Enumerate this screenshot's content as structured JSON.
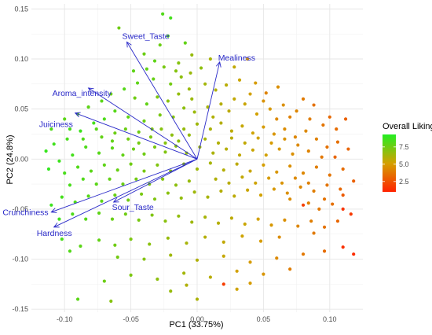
{
  "chart_data": {
    "type": "scatter",
    "subtype": "pca-biplot",
    "xlabel": "PC1 (33.75%)",
    "ylabel": "PC2 (24.8%)",
    "xlim": [
      -0.125,
      0.125
    ],
    "ylim": [
      -0.153,
      0.155
    ],
    "x_ticks": [
      -0.1,
      -0.05,
      0.0,
      0.05,
      0.1
    ],
    "x_tick_labels": [
      "-0.10",
      "-0.05",
      "0.00",
      "0.05",
      "0.10"
    ],
    "y_ticks": [
      -0.15,
      -0.1,
      -0.05,
      0.0,
      0.05,
      0.1,
      0.15
    ],
    "y_tick_labels": [
      "-0.15",
      "-0.10",
      "-0.05",
      "0.00",
      "0.05",
      "0.10",
      "0.15"
    ],
    "grid": true,
    "colors": {
      "loadings": "#2828c8",
      "low": "#ff2200",
      "mid": "#d4a000",
      "high": "#22ee22"
    },
    "color_scale": {
      "min": 1,
      "max": 9.3
    },
    "legend": {
      "title": "Overall Liking",
      "position": "right",
      "ticks": [
        7.5,
        5.0,
        2.5
      ],
      "tick_labels": [
        "7.5",
        "5.0",
        "2.5"
      ]
    },
    "loadings": [
      {
        "name": "Sweet_Taste",
        "x": -0.053,
        "y": 0.117
      },
      {
        "name": "Mealiness",
        "x": 0.017,
        "y": 0.097
      },
      {
        "name": "Aroma_intensity",
        "x": -0.082,
        "y": 0.071
      },
      {
        "name": "Juiciness",
        "x": -0.092,
        "y": 0.046
      },
      {
        "name": "Sour_Taste",
        "x": -0.063,
        "y": -0.043
      },
      {
        "name": "Crunchiness",
        "x": -0.11,
        "y": -0.053
      },
      {
        "name": "Hardness",
        "x": -0.108,
        "y": -0.068
      }
    ],
    "points": [
      [
        -0.059,
        0.131,
        7.5
      ],
      [
        -0.026,
        0.145,
        8.2
      ],
      [
        -0.02,
        0.141,
        8.5
      ],
      [
        -0.022,
        0.123,
        8.0
      ],
      [
        -0.009,
        0.116,
        7.8
      ],
      [
        -0.04,
        0.105,
        7.6
      ],
      [
        -0.032,
        0.098,
        7.9
      ],
      [
        -0.025,
        0.092,
        7.3
      ],
      [
        -0.014,
        0.096,
        7.0
      ],
      [
        -0.012,
        0.082,
        6.8
      ],
      [
        -0.005,
        0.086,
        6.5
      ],
      [
        0.003,
        0.091,
        6.8
      ],
      [
        -0.02,
        0.075,
        7.4
      ],
      [
        -0.033,
        0.08,
        7.7
      ],
      [
        -0.045,
        0.076,
        7.9
      ],
      [
        -0.055,
        0.07,
        8.1
      ],
      [
        -0.047,
        0.061,
        7.5
      ],
      [
        -0.038,
        0.055,
        7.8
      ],
      [
        -0.03,
        0.062,
        7.2
      ],
      [
        -0.022,
        0.058,
        6.9
      ],
      [
        -0.014,
        0.065,
        6.7
      ],
      [
        -0.006,
        0.07,
        6.5
      ],
      [
        0.006,
        0.075,
        6.3
      ],
      [
        0.014,
        0.069,
        6.0
      ],
      [
        0.022,
        0.074,
        5.8
      ],
      [
        0.032,
        0.079,
        5.4
      ],
      [
        0.044,
        0.076,
        5.0
      ],
      [
        0.052,
        0.066,
        4.2
      ],
      [
        0.061,
        0.072,
        4.6
      ],
      [
        0.04,
        0.065,
        5.2
      ],
      [
        0.028,
        0.06,
        5.6
      ],
      [
        0.018,
        0.055,
        5.9
      ],
      [
        0.008,
        0.052,
        6.2
      ],
      [
        -0.002,
        0.047,
        6.5
      ],
      [
        -0.01,
        0.051,
        6.8
      ],
      [
        -0.018,
        0.042,
        7.0
      ],
      [
        -0.028,
        0.044,
        7.3
      ],
      [
        -0.04,
        0.038,
        7.6
      ],
      [
        -0.052,
        0.042,
        7.9
      ],
      [
        -0.062,
        0.048,
        8.1
      ],
      [
        -0.07,
        0.04,
        8.3
      ],
      [
        -0.078,
        0.036,
        8.5
      ],
      [
        -0.088,
        0.028,
        8.7
      ],
      [
        -0.098,
        0.02,
        8.4
      ],
      [
        -0.108,
        0.015,
        8.6
      ],
      [
        -0.114,
        0.008,
        8.8
      ],
      [
        -0.11,
        0.03,
        8.2
      ],
      [
        -0.1,
        0.04,
        8.0
      ],
      [
        -0.09,
        0.045,
        7.8
      ],
      [
        -0.082,
        0.052,
        7.9
      ],
      [
        -0.072,
        0.058,
        8.0
      ],
      [
        -0.065,
        0.065,
        7.7
      ],
      [
        -0.072,
        0.022,
        7.8
      ],
      [
        -0.062,
        0.026,
        7.6
      ],
      [
        -0.052,
        0.02,
        7.4
      ],
      [
        -0.044,
        0.027,
        7.5
      ],
      [
        -0.035,
        0.022,
        7.2
      ],
      [
        -0.027,
        0.03,
        7.0
      ],
      [
        -0.019,
        0.024,
        6.8
      ],
      [
        -0.01,
        0.03,
        6.6
      ],
      [
        0.0,
        0.035,
        6.4
      ],
      [
        0.01,
        0.03,
        6.1
      ],
      [
        0.018,
        0.036,
        5.9
      ],
      [
        0.026,
        0.028,
        5.7
      ],
      [
        0.034,
        0.033,
        5.5
      ],
      [
        0.042,
        0.026,
        5.3
      ],
      [
        0.05,
        0.032,
        5.0
      ],
      [
        0.058,
        0.025,
        4.8
      ],
      [
        0.066,
        0.03,
        4.5
      ],
      [
        0.074,
        0.022,
        4.3
      ],
      [
        0.082,
        0.028,
        4.4
      ],
      [
        0.09,
        0.02,
        4.1
      ],
      [
        0.098,
        0.012,
        3.6
      ],
      [
        0.106,
        0.017,
        3.5
      ],
      [
        0.114,
        0.01,
        3.2
      ],
      [
        0.094,
        0.002,
        3.8
      ],
      [
        0.084,
        0.008,
        4.2
      ],
      [
        0.072,
        0.005,
        4.6
      ],
      [
        0.062,
        0.01,
        4.9
      ],
      [
        0.052,
        0.004,
        5.2
      ],
      [
        0.042,
        0.009,
        5.4
      ],
      [
        0.032,
        0.004,
        5.6
      ],
      [
        0.022,
        0.01,
        5.9
      ],
      [
        0.012,
        0.006,
        6.1
      ],
      [
        0.002,
        0.012,
        6.4
      ],
      [
        -0.008,
        0.006,
        6.7
      ],
      [
        -0.016,
        0.013,
        6.9
      ],
      [
        -0.024,
        0.007,
        7.1
      ],
      [
        -0.032,
        0.012,
        7.3
      ],
      [
        -0.04,
        0.005,
        7.5
      ],
      [
        -0.048,
        0.01,
        7.6
      ],
      [
        -0.056,
        0.004,
        7.8
      ],
      [
        -0.064,
        0.011,
        8.0
      ],
      [
        -0.074,
        0.006,
        8.1
      ],
      [
        -0.084,
        0.012,
        8.3
      ],
      [
        -0.094,
        0.004,
        8.5
      ],
      [
        -0.104,
        -0.002,
        8.7
      ],
      [
        -0.112,
        -0.01,
        8.9
      ],
      [
        -0.1,
        -0.014,
        8.4
      ],
      [
        -0.09,
        -0.008,
        8.2
      ],
      [
        -0.08,
        -0.012,
        8.0
      ],
      [
        -0.07,
        -0.006,
        7.9
      ],
      [
        -0.06,
        -0.011,
        7.7
      ],
      [
        -0.05,
        -0.005,
        7.5
      ],
      [
        -0.04,
        -0.012,
        7.3
      ],
      [
        -0.03,
        -0.006,
        7.1
      ],
      [
        -0.02,
        -0.012,
        6.9
      ],
      [
        -0.01,
        -0.005,
        6.7
      ],
      [
        0.0,
        -0.01,
        6.4
      ],
      [
        0.01,
        -0.004,
        6.2
      ],
      [
        0.02,
        -0.011,
        5.9
      ],
      [
        0.03,
        -0.005,
        5.7
      ],
      [
        0.04,
        -0.012,
        5.4
      ],
      [
        0.05,
        -0.006,
        5.1
      ],
      [
        0.06,
        -0.013,
        4.8
      ],
      [
        0.07,
        -0.007,
        4.6
      ],
      [
        0.08,
        -0.014,
        4.3
      ],
      [
        0.09,
        -0.008,
        4.0
      ],
      [
        0.1,
        -0.016,
        3.7
      ],
      [
        0.11,
        -0.01,
        3.4
      ],
      [
        0.118,
        -0.022,
        3.0
      ],
      [
        0.108,
        -0.03,
        3.3
      ],
      [
        0.098,
        -0.026,
        3.7
      ],
      [
        0.088,
        -0.032,
        4.0
      ],
      [
        0.078,
        -0.028,
        4.3
      ],
      [
        0.068,
        -0.034,
        4.6
      ],
      [
        0.058,
        -0.03,
        4.9
      ],
      [
        0.048,
        -0.036,
        5.2
      ],
      [
        0.038,
        -0.031,
        5.4
      ],
      [
        0.028,
        -0.037,
        5.7
      ],
      [
        0.018,
        -0.032,
        5.9
      ],
      [
        0.008,
        -0.038,
        6.2
      ],
      [
        -0.002,
        -0.033,
        6.4
      ],
      [
        -0.012,
        -0.039,
        6.7
      ],
      [
        -0.022,
        -0.034,
        6.9
      ],
      [
        -0.032,
        -0.04,
        7.1
      ],
      [
        -0.042,
        -0.035,
        7.3
      ],
      [
        -0.052,
        -0.041,
        7.5
      ],
      [
        -0.062,
        -0.036,
        7.7
      ],
      [
        -0.072,
        -0.042,
        7.9
      ],
      [
        -0.082,
        -0.037,
        8.1
      ],
      [
        -0.092,
        -0.043,
        8.3
      ],
      [
        -0.102,
        -0.038,
        8.5
      ],
      [
        -0.11,
        -0.046,
        8.7
      ],
      [
        -0.104,
        -0.06,
        8.6
      ],
      [
        -0.094,
        -0.055,
        8.3
      ],
      [
        -0.084,
        -0.06,
        8.1
      ],
      [
        -0.074,
        -0.054,
        7.9
      ],
      [
        -0.064,
        -0.06,
        7.7
      ],
      [
        -0.054,
        -0.055,
        7.5
      ],
      [
        -0.044,
        -0.061,
        7.3
      ],
      [
        -0.034,
        -0.056,
        7.1
      ],
      [
        -0.024,
        -0.062,
        6.9
      ],
      [
        -0.014,
        -0.057,
        6.7
      ],
      [
        -0.004,
        -0.063,
        6.4
      ],
      [
        0.006,
        -0.058,
        6.2
      ],
      [
        0.016,
        -0.064,
        5.9
      ],
      [
        0.026,
        -0.059,
        5.7
      ],
      [
        0.036,
        -0.065,
        5.4
      ],
      [
        0.046,
        -0.06,
        5.2
      ],
      [
        0.056,
        -0.066,
        4.9
      ],
      [
        0.066,
        -0.061,
        4.6
      ],
      [
        0.076,
        -0.067,
        4.3
      ],
      [
        0.086,
        -0.062,
        4.0
      ],
      [
        0.096,
        -0.068,
        3.6
      ],
      [
        0.106,
        -0.062,
        3.2
      ],
      [
        0.116,
        -0.055,
        1.8
      ],
      [
        0.11,
        -0.05,
        1.6
      ],
      [
        0.08,
        -0.046,
        2.0
      ],
      [
        0.062,
        -0.078,
        4.5
      ],
      [
        0.048,
        -0.082,
        5.0
      ],
      [
        0.034,
        -0.077,
        5.3
      ],
      [
        0.02,
        -0.083,
        5.6
      ],
      [
        0.006,
        -0.078,
        5.9
      ],
      [
        -0.008,
        -0.084,
        6.2
      ],
      [
        -0.022,
        -0.079,
        6.6
      ],
      [
        -0.036,
        -0.085,
        6.9
      ],
      [
        -0.05,
        -0.08,
        7.2
      ],
      [
        -0.062,
        -0.086,
        7.5
      ],
      [
        -0.074,
        -0.081,
        7.8
      ],
      [
        -0.088,
        -0.087,
        8.0
      ],
      [
        -0.102,
        -0.08,
        8.4
      ],
      [
        -0.096,
        -0.092,
        8.2
      ],
      [
        -0.06,
        -0.098,
        7.4
      ],
      [
        -0.04,
        -0.1,
        7.0
      ],
      [
        -0.02,
        -0.096,
        6.4
      ],
      [
        0.0,
        -0.101,
        6.0
      ],
      [
        0.02,
        -0.097,
        5.5
      ],
      [
        0.04,
        -0.103,
        5.0
      ],
      [
        0.06,
        -0.099,
        4.4
      ],
      [
        0.08,
        -0.095,
        3.8
      ],
      [
        0.096,
        -0.092,
        3.4
      ],
      [
        0.11,
        -0.088,
        1.5
      ],
      [
        0.118,
        -0.095,
        1.3
      ],
      [
        0.07,
        -0.11,
        4.0
      ],
      [
        0.05,
        -0.115,
        4.8
      ],
      [
        0.03,
        -0.112,
        5.2
      ],
      [
        0.01,
        -0.118,
        5.8
      ],
      [
        -0.01,
        -0.114,
        6.3
      ],
      [
        -0.03,
        -0.12,
        6.8
      ],
      [
        -0.05,
        -0.116,
        7.2
      ],
      [
        -0.07,
        -0.122,
        7.6
      ],
      [
        0.02,
        -0.125,
        1.9
      ],
      [
        -0.008,
        -0.126,
        6.0
      ],
      [
        0.04,
        -0.124,
        5.0
      ],
      [
        -0.09,
        -0.14,
        8.0
      ],
      [
        -0.065,
        -0.142,
        7.0
      ],
      [
        0.0,
        -0.14,
        6.1
      ],
      [
        -0.02,
        -0.132,
        6.6
      ],
      [
        0.03,
        -0.13,
        5.3
      ],
      [
        0.045,
        0.045,
        5.2
      ],
      [
        0.055,
        0.05,
        4.9
      ],
      [
        0.065,
        0.054,
        4.6
      ],
      [
        0.075,
        0.048,
        4.3
      ],
      [
        0.085,
        0.04,
        4.0
      ],
      [
        0.095,
        0.034,
        3.7
      ],
      [
        0.105,
        0.03,
        3.4
      ],
      [
        0.036,
        0.055,
        5.4
      ],
      [
        0.024,
        0.048,
        5.7
      ],
      [
        0.012,
        0.042,
        6.0
      ],
      [
        -0.004,
        0.06,
        6.5
      ],
      [
        -0.016,
        0.088,
        7.0
      ],
      [
        -0.028,
        0.114,
        7.6
      ],
      [
        -0.038,
        0.09,
        7.8
      ],
      [
        -0.048,
        0.088,
        7.9
      ],
      [
        0.07,
        -0.04,
        4.5
      ],
      [
        0.084,
        -0.044,
        4.1
      ],
      [
        0.092,
        -0.05,
        3.8
      ],
      [
        0.102,
        -0.045,
        3.5
      ],
      [
        0.014,
        -0.02,
        6.0
      ],
      [
        0.024,
        -0.024,
        5.8
      ],
      [
        0.034,
        -0.018,
        5.6
      ],
      [
        0.044,
        -0.024,
        5.3
      ],
      [
        0.054,
        -0.019,
        5.0
      ],
      [
        0.064,
        -0.024,
        4.7
      ],
      [
        0.074,
        -0.019,
        4.4
      ],
      [
        0.084,
        -0.024,
        4.1
      ],
      [
        -0.006,
        -0.022,
        6.6
      ],
      [
        -0.016,
        -0.026,
        6.8
      ],
      [
        -0.026,
        -0.02,
        7.0
      ],
      [
        -0.036,
        -0.025,
        7.2
      ],
      [
        -0.046,
        -0.02,
        7.4
      ],
      [
        -0.056,
        -0.025,
        7.6
      ],
      [
        -0.066,
        -0.02,
        7.8
      ],
      [
        -0.076,
        -0.025,
        8.0
      ],
      [
        -0.086,
        -0.02,
        8.2
      ],
      [
        -0.096,
        -0.026,
        8.4
      ],
      [
        0.006,
        0.02,
        6.2
      ],
      [
        0.016,
        0.016,
        6.0
      ],
      [
        0.026,
        0.021,
        5.8
      ],
      [
        0.036,
        0.016,
        5.6
      ],
      [
        0.046,
        0.021,
        5.3
      ],
      [
        0.056,
        0.016,
        5.0
      ],
      [
        0.066,
        0.02,
        4.7
      ],
      [
        0.076,
        0.014,
        4.4
      ],
      [
        -0.006,
        0.024,
        6.6
      ],
      [
        -0.014,
        0.018,
        6.8
      ],
      [
        -0.024,
        0.016,
        7.0
      ],
      [
        -0.034,
        0.03,
        7.2
      ],
      [
        -0.044,
        0.016,
        7.4
      ],
      [
        -0.054,
        0.03,
        7.6
      ],
      [
        -0.064,
        0.018,
        7.8
      ],
      [
        -0.076,
        0.03,
        8.0
      ],
      [
        -0.086,
        0.02,
        8.2
      ],
      [
        -0.096,
        0.03,
        8.4
      ],
      [
        0.028,
        0.092,
        5.6
      ],
      [
        0.01,
        0.1,
        6.2
      ],
      [
        -0.004,
        0.104,
        6.6
      ],
      [
        0.038,
        0.1,
        5.0
      ],
      [
        0.05,
        0.058,
        4.7
      ],
      [
        0.06,
        0.04,
        4.4
      ],
      [
        0.07,
        0.042,
        4.1
      ],
      [
        0.08,
        0.06,
        3.9
      ],
      [
        0.088,
        0.054,
        3.6
      ],
      [
        0.1,
        0.042,
        3.3
      ],
      [
        0.112,
        0.04,
        3.0
      ],
      [
        0.104,
        0.002,
        3.2
      ],
      [
        0.11,
        -0.036,
        2.8
      ],
      [
        0.096,
        -0.04,
        3.6
      ],
      [
        0.088,
        -0.074,
        3.9
      ]
    ]
  }
}
